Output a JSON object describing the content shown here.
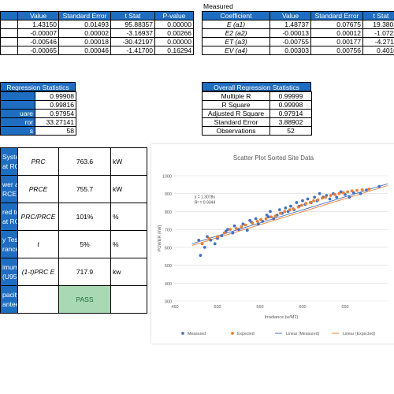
{
  "top_left": {
    "headers": [
      "Value",
      "Standard Error",
      "t Stat",
      "P-value"
    ],
    "rows": [
      [
        "1.43150",
        "0.01493",
        "95.88357",
        "0.00000"
      ],
      [
        "-0.00007",
        "0.00002",
        "-3.16937",
        "0.00266"
      ],
      [
        "-0.00546",
        "0.00018",
        "-30.42197",
        "0.00000"
      ],
      [
        "-0.00065",
        "0.00046",
        "-1.41700",
        "0.16294"
      ]
    ]
  },
  "top_right": {
    "title": "Measured",
    "headers": [
      "Coefficient",
      "Value",
      "Standard Error",
      "t Stat"
    ],
    "rows": [
      [
        "E (a1)",
        "1.48737",
        "0.07675",
        "19.3803"
      ],
      [
        "E2 (a2)",
        "-0.00013",
        "0.00012",
        "-1.0723"
      ],
      [
        "ET (a3)",
        "-0.00755",
        "0.00177",
        "-4.2711"
      ],
      [
        "EV (a4)",
        "0.00303",
        "0.00756",
        "0.4010"
      ]
    ]
  },
  "left_stats": {
    "title": "Regression Statistics",
    "rows": [
      [
        "",
        "0.99908"
      ],
      [
        "",
        "0.99816"
      ],
      [
        "uare",
        "0.97954"
      ],
      [
        "ror",
        "33.27141"
      ],
      [
        "s",
        "58"
      ]
    ]
  },
  "right_stats": {
    "title": "Overall Regression Statistics",
    "rows": [
      [
        "Multiple R",
        "0.99999"
      ],
      [
        "R Square",
        "0.99998"
      ],
      [
        "Adjusted R Square",
        "0.97914"
      ],
      [
        "Standard Error",
        "3.88902"
      ],
      [
        "Observations",
        "52"
      ]
    ]
  },
  "capacity": {
    "rows": [
      {
        "label": "System\nat RC",
        "symbol": "PRC",
        "value": "763.6",
        "unit": "kW"
      },
      {
        "label": "wer at\nRCE",
        "symbol": "PRCE",
        "value": "755.7",
        "unit": "kW"
      },
      {
        "label": "red to\nat RC",
        "symbol": "PRC/PRCE",
        "value": "101%",
        "unit": "%"
      },
      {
        "label": "y Test\nrance",
        "symbol": "t",
        "value": "5%",
        "unit": "%"
      },
      {
        "label": "imum\n(U95)",
        "symbol": "(1-t)PRC E",
        "value": "717.9",
        "unit": "kw"
      },
      {
        "label": "pacity\nantee",
        "symbol": "",
        "value": "PASS",
        "unit": ""
      }
    ]
  },
  "chart_data": {
    "type": "scatter",
    "title": "Scatter Plot Sorted Site Data",
    "xlabel": "Irradiance (w/M2)",
    "ylabel": "POWER (kW)",
    "xlim": [
      450,
      700
    ],
    "ylim": [
      300,
      1000
    ],
    "xticks": [
      450,
      500,
      550,
      600,
      650
    ],
    "yticks": [
      300,
      400,
      500,
      600,
      700,
      800,
      900,
      1000
    ],
    "annotation": [
      "y = 1.3078x",
      "R² = 0.9344"
    ],
    "colors": {
      "measured": "#4472c4",
      "expected": "#ed7d31"
    },
    "legend": [
      "Measured",
      "Expected",
      "Linear (Measured)",
      "Linear (Expected)"
    ],
    "series": [
      {
        "name": "Measured",
        "points": [
          [
            478,
            640
          ],
          [
            480,
            555
          ],
          [
            485,
            600
          ],
          [
            488,
            660
          ],
          [
            492,
            640
          ],
          [
            497,
            620
          ],
          [
            500,
            650
          ],
          [
            505,
            665
          ],
          [
            510,
            690
          ],
          [
            512,
            700
          ],
          [
            518,
            680
          ],
          [
            520,
            720
          ],
          [
            525,
            700
          ],
          [
            530,
            730
          ],
          [
            535,
            695
          ],
          [
            538,
            750
          ],
          [
            540,
            740
          ],
          [
            545,
            760
          ],
          [
            548,
            730
          ],
          [
            553,
            745
          ],
          [
            558,
            780
          ],
          [
            560,
            770
          ],
          [
            562,
            800
          ],
          [
            566,
            760
          ],
          [
            570,
            780
          ],
          [
            573,
            810
          ],
          [
            576,
            790
          ],
          [
            580,
            820
          ],
          [
            583,
            800
          ],
          [
            586,
            830
          ],
          [
            590,
            810
          ],
          [
            593,
            850
          ],
          [
            596,
            830
          ],
          [
            600,
            860
          ],
          [
            603,
            840
          ],
          [
            606,
            870
          ],
          [
            610,
            850
          ],
          [
            614,
            880
          ],
          [
            617,
            860
          ],
          [
            620,
            900
          ],
          [
            624,
            880
          ],
          [
            628,
            890
          ],
          [
            632,
            870
          ],
          [
            636,
            900
          ],
          [
            640,
            880
          ],
          [
            645,
            910
          ],
          [
            650,
            895
          ],
          [
            655,
            880
          ],
          [
            660,
            905
          ],
          [
            668,
            900
          ],
          [
            675,
            920
          ],
          [
            690,
            940
          ]
        ]
      },
      {
        "name": "Expected",
        "points": [
          [
            482,
            620
          ],
          [
            490,
            650
          ],
          [
            500,
            660
          ],
          [
            508,
            680
          ],
          [
            515,
            700
          ],
          [
            522,
            705
          ],
          [
            528,
            715
          ],
          [
            533,
            725
          ],
          [
            541,
            735
          ],
          [
            547,
            745
          ],
          [
            551,
            755
          ],
          [
            557,
            760
          ],
          [
            563,
            770
          ],
          [
            568,
            775
          ],
          [
            574,
            790
          ],
          [
            579,
            800
          ],
          [
            585,
            810
          ],
          [
            589,
            815
          ],
          [
            595,
            825
          ],
          [
            599,
            835
          ],
          [
            604,
            845
          ],
          [
            609,
            850
          ],
          [
            613,
            860
          ],
          [
            618,
            865
          ],
          [
            623,
            875
          ],
          [
            627,
            880
          ],
          [
            633,
            890
          ],
          [
            638,
            895
          ],
          [
            643,
            900
          ],
          [
            648,
            905
          ],
          [
            653,
            910
          ],
          [
            658,
            915
          ],
          [
            664,
            918
          ],
          [
            670,
            922
          ],
          [
            678,
            925
          ]
        ]
      }
    ],
    "trend": {
      "measured": [
        [
          470,
          620
        ],
        [
          700,
          955
        ]
      ],
      "expected": [
        [
          470,
          610
        ],
        [
          700,
          945
        ]
      ]
    }
  }
}
